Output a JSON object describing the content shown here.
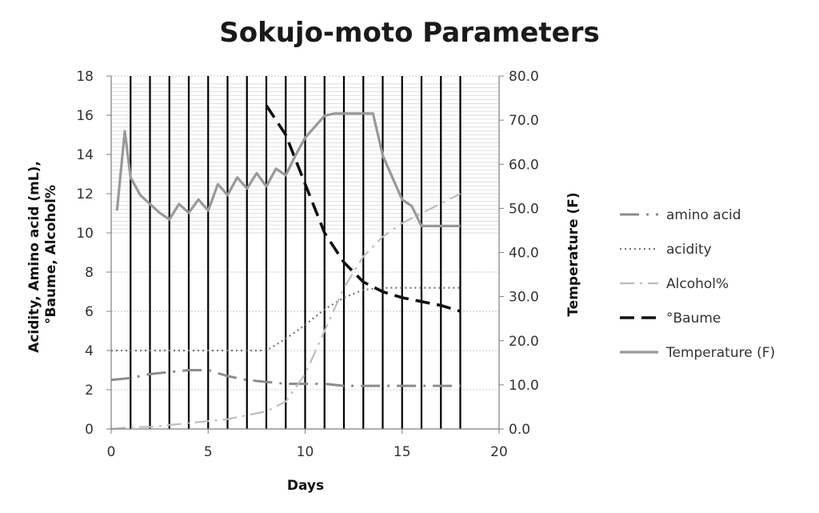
{
  "chart_data": {
    "type": "line",
    "title": "Sokujo-moto Parameters",
    "xlabel": "Days",
    "ylabel_lines": [
      "Acidity, Amino acid (mL),",
      "°Baume, Alcohol%"
    ],
    "y2label": "Temperature (F)",
    "xlim": [
      0,
      20
    ],
    "ylim": [
      0,
      18
    ],
    "y2lim": [
      0,
      80
    ],
    "x_ticks": [
      0,
      5,
      10,
      15,
      20
    ],
    "y_ticks": [
      0,
      2,
      4,
      6,
      8,
      10,
      12,
      14,
      16,
      18
    ],
    "y2_ticks": [
      "0.0",
      "10.0",
      "20.0",
      "30.0",
      "40.0",
      "50.0",
      "60.0",
      "70.0",
      "80.0"
    ],
    "vertical_lines_x": [
      1,
      2,
      3,
      4,
      5,
      6,
      7,
      8,
      9,
      10,
      11,
      12,
      13,
      14,
      15,
      16,
      17,
      18
    ],
    "legend_position": "right",
    "series": [
      {
        "name": "amino acid",
        "axis": "left",
        "style": "gray-dash-dot",
        "color": "#8c8c8c",
        "x": [
          0,
          1,
          2,
          3,
          4,
          5,
          6,
          7,
          8,
          9,
          10,
          11,
          12,
          13,
          14,
          15,
          16,
          17,
          18
        ],
        "y": [
          2.5,
          2.6,
          2.8,
          2.9,
          3.0,
          3.0,
          2.7,
          2.5,
          2.4,
          2.3,
          2.3,
          2.3,
          2.2,
          2.2,
          2.2,
          2.2,
          2.2,
          2.2,
          2.2
        ]
      },
      {
        "name": "acidity",
        "axis": "left",
        "style": "dotted",
        "color": "#777777",
        "x": [
          0,
          1,
          2,
          3,
          4,
          5,
          6,
          7,
          8,
          9,
          10,
          11,
          12,
          13,
          14,
          15,
          16,
          17,
          18
        ],
        "y": [
          4.0,
          4.0,
          4.0,
          4.0,
          4.0,
          4.0,
          4.0,
          4.0,
          4.0,
          4.6,
          5.3,
          6.1,
          6.7,
          7.1,
          7.2,
          7.2,
          7.2,
          7.2,
          7.2
        ]
      },
      {
        "name": "Alcohol%",
        "axis": "left",
        "style": "light-gray-dash-dot",
        "color": "#bdbdbd",
        "x": [
          0,
          1,
          2,
          3,
          4,
          5,
          6,
          7,
          8,
          9,
          10,
          11,
          12,
          13,
          14,
          15,
          16,
          17,
          18
        ],
        "y": [
          0.0,
          0.1,
          0.1,
          0.2,
          0.3,
          0.4,
          0.5,
          0.7,
          0.9,
          1.4,
          2.8,
          5.0,
          7.2,
          8.8,
          9.8,
          10.5,
          11.0,
          11.5,
          12.0
        ]
      },
      {
        "name": "°Baume",
        "axis": "left",
        "style": "black-dash",
        "color": "#111111",
        "x": [
          8,
          9,
          10,
          11,
          12,
          13,
          14,
          15,
          16,
          17,
          18
        ],
        "y": [
          16.5,
          15.0,
          12.5,
          10.0,
          8.5,
          7.5,
          7.0,
          6.7,
          6.5,
          6.3,
          6.0
        ]
      },
      {
        "name": "Temperature (F)",
        "axis": "right",
        "style": "gray-solid",
        "color": "#999999",
        "x": [
          0.3,
          0.7,
          1.0,
          1.5,
          2.0,
          2.5,
          3.0,
          3.5,
          4.0,
          4.5,
          5.0,
          5.5,
          6.0,
          6.5,
          7.0,
          7.5,
          8.0,
          8.5,
          9.0,
          9.5,
          10.0,
          10.5,
          11.0,
          11.5,
          12.0,
          12.5,
          13.0,
          13.5,
          14.0,
          14.5,
          15.0,
          15.5,
          16.0,
          16.5,
          17.0,
          17.5,
          18.0
        ],
        "y": [
          49.5,
          67.5,
          57.0,
          53.0,
          51.0,
          49.0,
          47.5,
          51.0,
          49.0,
          52.0,
          49.5,
          55.5,
          53.0,
          57.0,
          54.5,
          58.0,
          55.0,
          59.0,
          57.5,
          62.0,
          66.0,
          68.5,
          71.0,
          71.5,
          71.5,
          71.5,
          71.5,
          71.5,
          62.0,
          57.0,
          52.0,
          50.5,
          46.0,
          46.0,
          46.0,
          46.0,
          46.0
        ]
      }
    ]
  }
}
